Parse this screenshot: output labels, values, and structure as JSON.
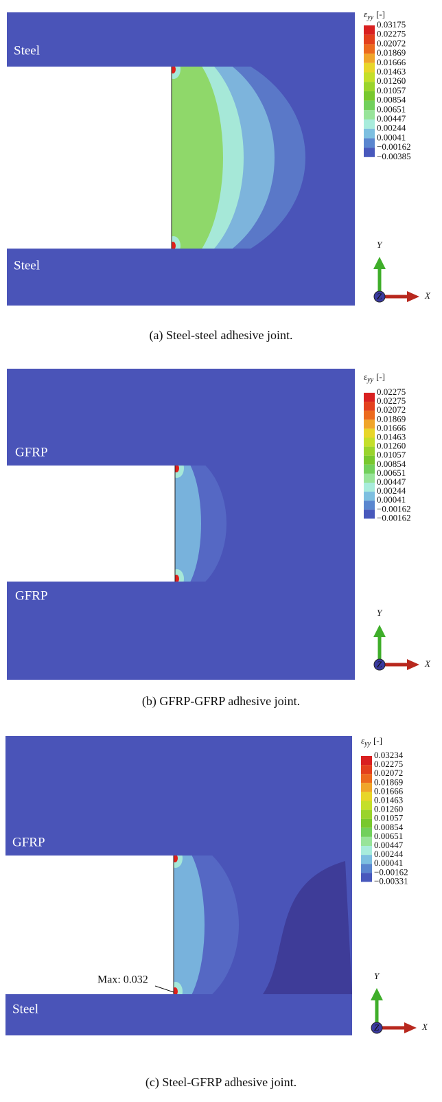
{
  "panels": [
    {
      "labels": [
        "Steel",
        "Steel"
      ],
      "legend": {
        "symbol": "ε",
        "subscript": "yy",
        "unit": "[-]",
        "values": [
          "0.03175",
          "0.02275",
          "0.02072",
          "0.01869",
          "0.01666",
          "0.01463",
          "0.01260",
          "0.01057",
          "0.00854",
          "0.00651",
          "0.00447",
          "0.00244",
          "0.00041",
          "−0.00162",
          "−0.00385"
        ]
      },
      "caption": "(a) Steel-steel adhesive joint."
    },
    {
      "labels": [
        "GFRP",
        "GFRP"
      ],
      "legend": {
        "symbol": "ε",
        "subscript": "yy",
        "unit": "[-]",
        "values": [
          "0.02275",
          "0.02275",
          "0.02072",
          "0.01869",
          "0.01666",
          "0.01463",
          "0.01260",
          "0.01057",
          "0.00854",
          "0.00651",
          "0.00447",
          "0.00244",
          "0.00041",
          "−0.00162",
          "−0.00162"
        ]
      },
      "caption": "(b) GFRP-GFRP adhesive joint."
    },
    {
      "labels": [
        "GFRP",
        "Steel"
      ],
      "legend": {
        "symbol": "ε",
        "subscript": "yy",
        "unit": "[-]",
        "values": [
          "0.03234",
          "0.02275",
          "0.02072",
          "0.01869",
          "0.01666",
          "0.01463",
          "0.01260",
          "0.01057",
          "0.00854",
          "0.00651",
          "0.00447",
          "0.00244",
          "0.00041",
          "−0.00162",
          "−0.00331"
        ]
      },
      "caption": "(c) Steel-GFRP adhesive joint.",
      "annotation": "Max: 0.032"
    }
  ],
  "axes": {
    "x": "X",
    "y": "Y",
    "z": "Z"
  }
}
